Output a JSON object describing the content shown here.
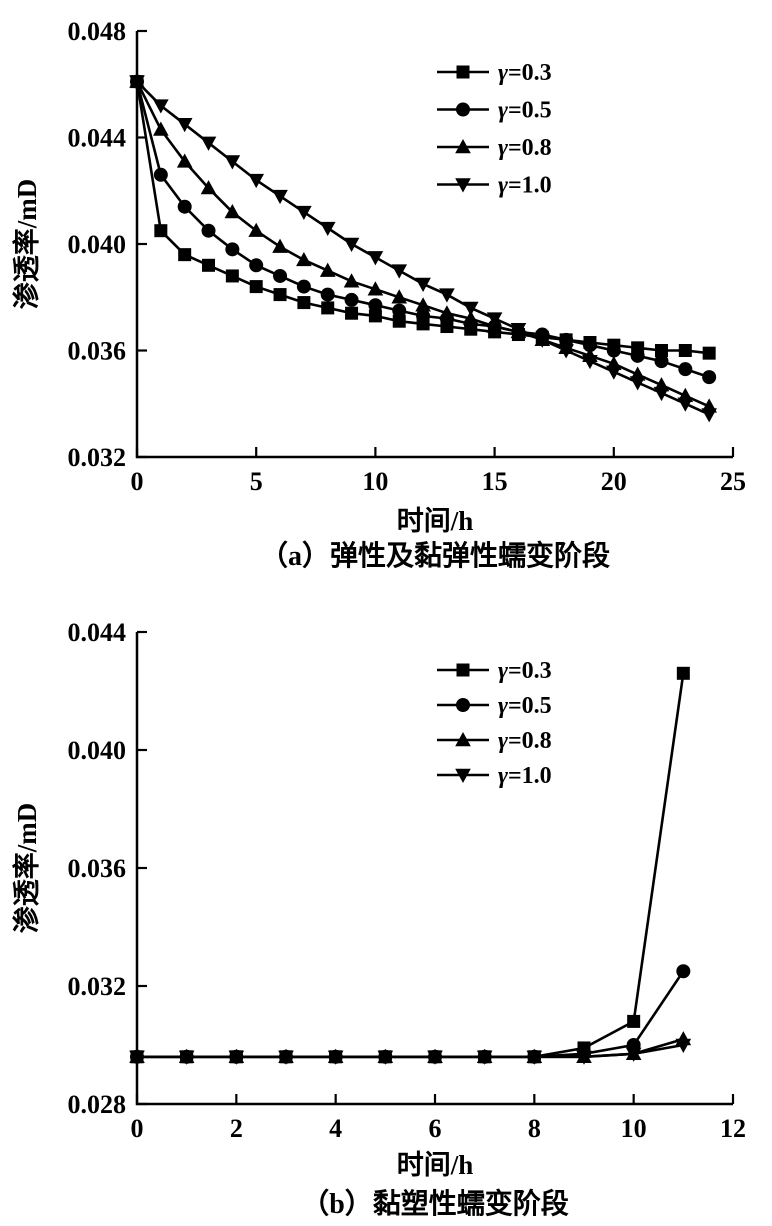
{
  "styles": {
    "background": "#ffffff",
    "axis_color": "#000000",
    "series_color": "#000000",
    "text_color": "#000000"
  },
  "chart_data": [
    {
      "id": "a",
      "type": "line",
      "caption": "（a）弹性及黏弹性蠕变阶段",
      "xlabel": "时间/h",
      "ylabel": "渗透率/mD",
      "xlim": [
        0,
        25
      ],
      "ylim": [
        0.032,
        0.048
      ],
      "xticks": [
        0,
        5,
        10,
        15,
        20,
        25
      ],
      "xtick_labels": [
        "0",
        "5",
        "10",
        "15",
        "20",
        "25"
      ],
      "yticks": [
        0.032,
        0.036,
        0.04,
        0.044,
        0.048
      ],
      "ytick_labels": [
        "0.032",
        "0.036",
        "0.040",
        "0.044",
        "0.048"
      ],
      "grid": false,
      "legend_position": "inside-upper-center",
      "x": [
        0,
        1,
        2,
        3,
        4,
        5,
        6,
        7,
        8,
        9,
        10,
        11,
        12,
        13,
        14,
        15,
        16,
        17,
        18,
        19,
        20,
        21,
        22,
        23,
        24
      ],
      "series": [
        {
          "name": "γ=0.3",
          "marker": "square",
          "values": [
            0.0461,
            0.0405,
            0.0396,
            0.0392,
            0.0388,
            0.0384,
            0.0381,
            0.0378,
            0.0376,
            0.0374,
            0.0373,
            0.0371,
            0.037,
            0.0369,
            0.0368,
            0.0367,
            0.0366,
            0.0365,
            0.0364,
            0.0363,
            0.0362,
            0.0361,
            0.036,
            0.036,
            0.0359
          ]
        },
        {
          "name": "γ=0.5",
          "marker": "circle",
          "values": [
            0.0461,
            0.0426,
            0.0414,
            0.0405,
            0.0398,
            0.0392,
            0.0388,
            0.0384,
            0.0381,
            0.0379,
            0.0377,
            0.0375,
            0.0373,
            0.0372,
            0.037,
            0.0369,
            0.0367,
            0.0366,
            0.0364,
            0.0362,
            0.036,
            0.0358,
            0.0356,
            0.0353,
            0.035
          ]
        },
        {
          "name": "γ=0.8",
          "marker": "triangle-up",
          "values": [
            0.0461,
            0.0443,
            0.0431,
            0.0421,
            0.0412,
            0.0405,
            0.0399,
            0.0394,
            0.039,
            0.0386,
            0.0383,
            0.038,
            0.0377,
            0.0374,
            0.0372,
            0.0369,
            0.0367,
            0.0364,
            0.0361,
            0.0358,
            0.0355,
            0.0351,
            0.0347,
            0.0343,
            0.0339
          ]
        },
        {
          "name": "γ=1.0",
          "marker": "triangle-down",
          "values": [
            0.0461,
            0.0452,
            0.0445,
            0.0438,
            0.0431,
            0.0424,
            0.0418,
            0.0412,
            0.0406,
            0.04,
            0.0395,
            0.039,
            0.0385,
            0.0381,
            0.0376,
            0.0372,
            0.0368,
            0.0364,
            0.036,
            0.0356,
            0.0352,
            0.0348,
            0.0344,
            0.034,
            0.0336
          ]
        }
      ]
    },
    {
      "id": "b",
      "type": "line",
      "caption": "（b）黏塑性蠕变阶段",
      "xlabel": "时间/h",
      "ylabel": "渗透率/mD",
      "xlim": [
        0,
        12
      ],
      "ylim": [
        0.028,
        0.044
      ],
      "xticks": [
        0,
        2,
        4,
        6,
        8,
        10,
        12
      ],
      "xtick_labels": [
        "0",
        "2",
        "4",
        "6",
        "8",
        "10",
        "12"
      ],
      "yticks": [
        0.028,
        0.032,
        0.036,
        0.04,
        0.044
      ],
      "ytick_labels": [
        "0.028",
        "0.032",
        "0.036",
        "0.040",
        "0.044"
      ],
      "grid": false,
      "legend_position": "inside-upper-center",
      "x": [
        0,
        1,
        2,
        3,
        4,
        5,
        6,
        7,
        8,
        9,
        10,
        11
      ],
      "series": [
        {
          "name": "γ=0.3",
          "marker": "square",
          "values": [
            0.0296,
            0.0296,
            0.0296,
            0.0296,
            0.0296,
            0.0296,
            0.0296,
            0.0296,
            0.0296,
            0.0299,
            0.0308,
            0.0426
          ]
        },
        {
          "name": "γ=0.5",
          "marker": "circle",
          "values": [
            0.0296,
            0.0296,
            0.0296,
            0.0296,
            0.0296,
            0.0296,
            0.0296,
            0.0296,
            0.0296,
            0.0297,
            0.03,
            0.0325
          ]
        },
        {
          "name": "γ=0.8",
          "marker": "triangle-up",
          "values": [
            0.0296,
            0.0296,
            0.0296,
            0.0296,
            0.0296,
            0.0296,
            0.0296,
            0.0296,
            0.0296,
            0.0296,
            0.0297,
            0.0302
          ]
        },
        {
          "name": "γ=1.0",
          "marker": "triangle-down",
          "values": [
            0.0296,
            0.0296,
            0.0296,
            0.0296,
            0.0296,
            0.0296,
            0.0296,
            0.0296,
            0.0296,
            0.0296,
            0.0297,
            0.03
          ]
        }
      ]
    }
  ]
}
